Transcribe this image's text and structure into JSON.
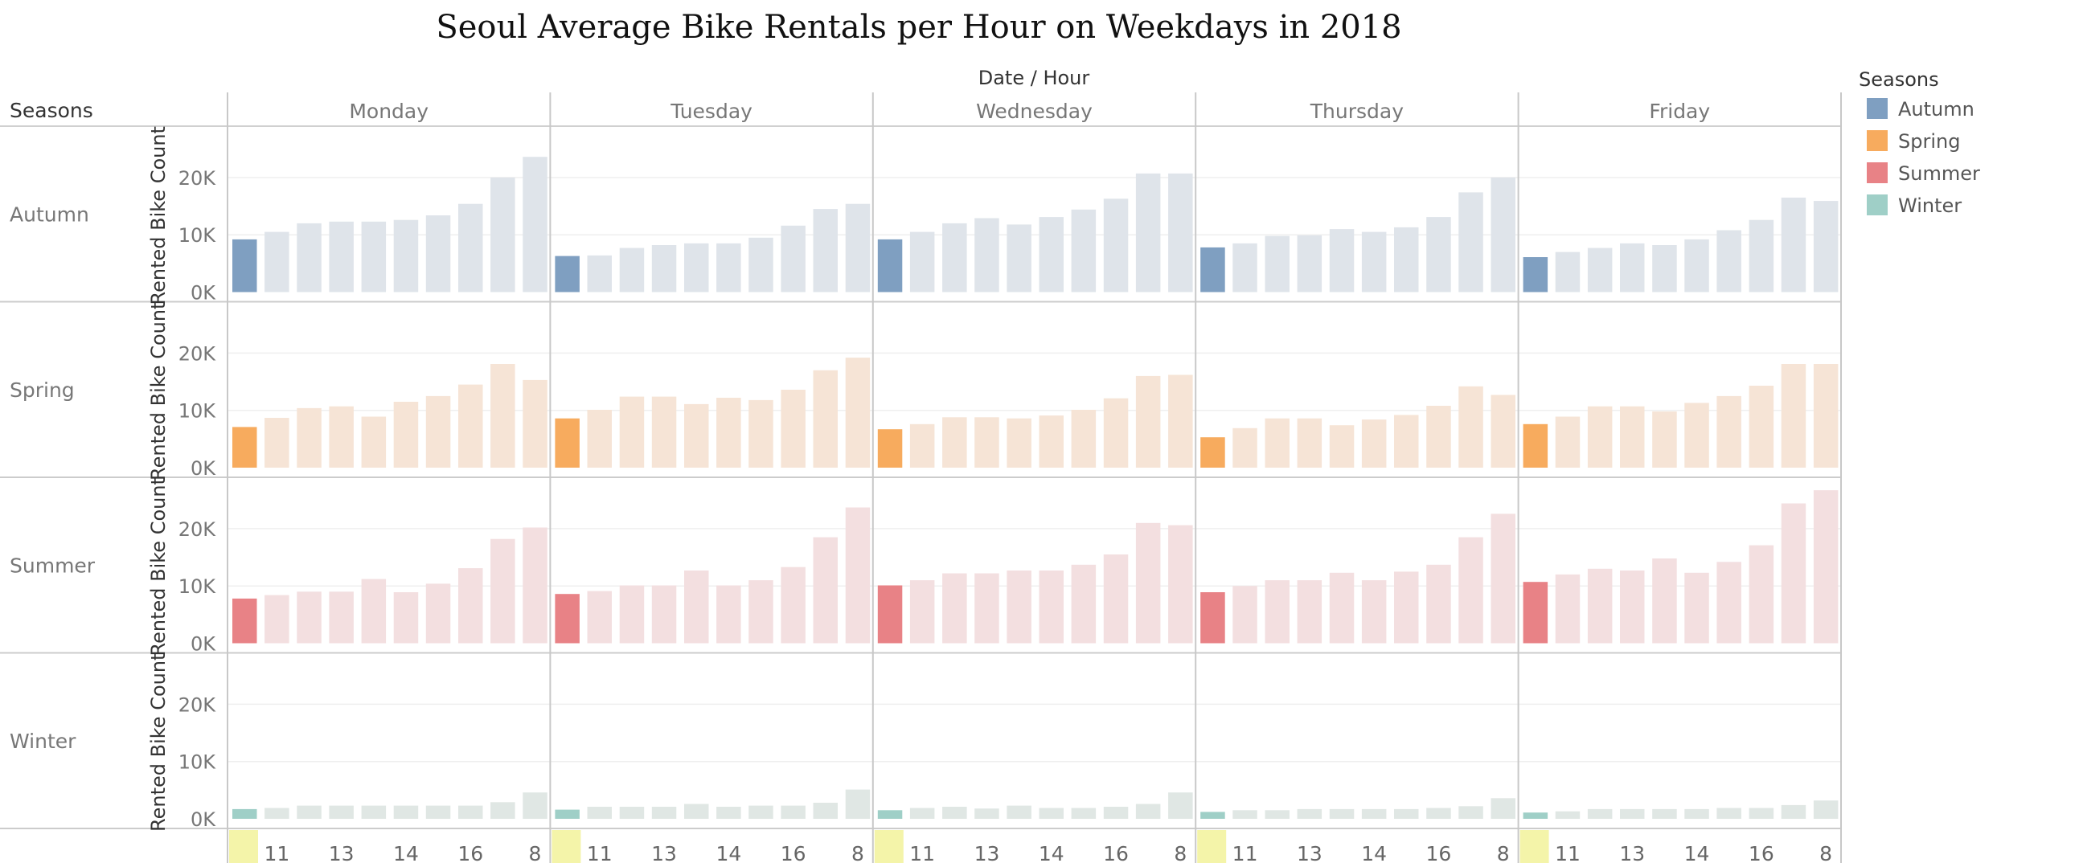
{
  "chart_data": {
    "type": "bar",
    "title": "Seoul Average Bike Rentals per Hour on Weekdays in 2018",
    "column_header": "Date / Hour",
    "row_header": "Seasons",
    "ylabel": "Rented Bike Count",
    "ylim": [
      0,
      27000
    ],
    "yticks": [
      0,
      10000,
      20000
    ],
    "ytick_labels": [
      "0K",
      "10K",
      "20K"
    ],
    "x_tick_labels": [
      "11",
      "13",
      "14",
      "16",
      "8"
    ],
    "days": [
      "Monday",
      "Tuesday",
      "Wednesday",
      "Thursday",
      "Friday"
    ],
    "legend": {
      "title": "Seasons",
      "position": "right",
      "items": [
        {
          "name": "Autumn",
          "color": "#7f9fc1"
        },
        {
          "name": "Spring",
          "color": "#f7ab5e"
        },
        {
          "name": "Summer",
          "color": "#e88286"
        },
        {
          "name": "Winter",
          "color": "#9fcfc7"
        }
      ]
    },
    "seasons": [
      {
        "name": "Autumn",
        "color": "#7f9fc1",
        "light": "#dfe4ea",
        "values": [
          [
            9200,
            10500,
            12000,
            12300,
            12300,
            12600,
            13400,
            15400,
            20000,
            23600
          ],
          [
            6300,
            6400,
            7700,
            8200,
            8500,
            8500,
            9500,
            11600,
            14500,
            15400
          ],
          [
            9200,
            10500,
            12000,
            12900,
            11800,
            13100,
            14400,
            16300,
            20700,
            20700
          ],
          [
            7800,
            8500,
            9800,
            9900,
            11000,
            10500,
            11300,
            13100,
            17400,
            20000
          ],
          [
            6100,
            7000,
            7700,
            8500,
            8200,
            9200,
            10800,
            12600,
            16500,
            15900
          ]
        ]
      },
      {
        "name": "Spring",
        "color": "#f7ab5e",
        "light": "#f6e4d6",
        "values": [
          [
            7100,
            8700,
            10400,
            10700,
            8900,
            11500,
            12500,
            14500,
            18100,
            15300
          ],
          [
            8600,
            10100,
            12400,
            12400,
            11100,
            12200,
            11800,
            13600,
            17000,
            19200
          ],
          [
            6700,
            7600,
            8800,
            8800,
            8600,
            9100,
            10100,
            12100,
            16000,
            16200
          ],
          [
            5300,
            6900,
            8600,
            8600,
            7400,
            8400,
            9200,
            10800,
            14200,
            12700
          ],
          [
            7600,
            8900,
            10700,
            10700,
            9800,
            11300,
            12500,
            14300,
            18100,
            18100
          ]
        ]
      },
      {
        "name": "Summer",
        "color": "#e88286",
        "light": "#f3dfe0",
        "values": [
          [
            7800,
            8400,
            9000,
            9000,
            11200,
            8900,
            10400,
            13100,
            18200,
            20200
          ],
          [
            8600,
            9100,
            10100,
            10100,
            12700,
            10100,
            11000,
            13300,
            18500,
            23700
          ],
          [
            10100,
            11000,
            12200,
            12200,
            12700,
            12700,
            13700,
            15500,
            21000,
            20600
          ],
          [
            8900,
            10000,
            11000,
            11000,
            12300,
            11000,
            12500,
            13700,
            18500,
            22600
          ],
          [
            10700,
            12000,
            13000,
            12700,
            14800,
            12300,
            14200,
            17100,
            24400,
            26700
          ]
        ]
      },
      {
        "name": "Winter",
        "color": "#9fcfc7",
        "light": "#e0e7e4",
        "values": [
          [
            1700,
            1900,
            2300,
            2300,
            2300,
            2300,
            2300,
            2300,
            2900,
            4600
          ],
          [
            1600,
            2100,
            2100,
            2100,
            2600,
            2100,
            2300,
            2300,
            2800,
            5100
          ],
          [
            1500,
            1900,
            2100,
            1800,
            2300,
            1900,
            1900,
            2100,
            2600,
            4600
          ],
          [
            1200,
            1500,
            1500,
            1700,
            1700,
            1700,
            1700,
            1900,
            2200,
            3600
          ],
          [
            1100,
            1300,
            1700,
            1700,
            1700,
            1700,
            1900,
            1900,
            2400,
            3200
          ]
        ]
      }
    ]
  }
}
